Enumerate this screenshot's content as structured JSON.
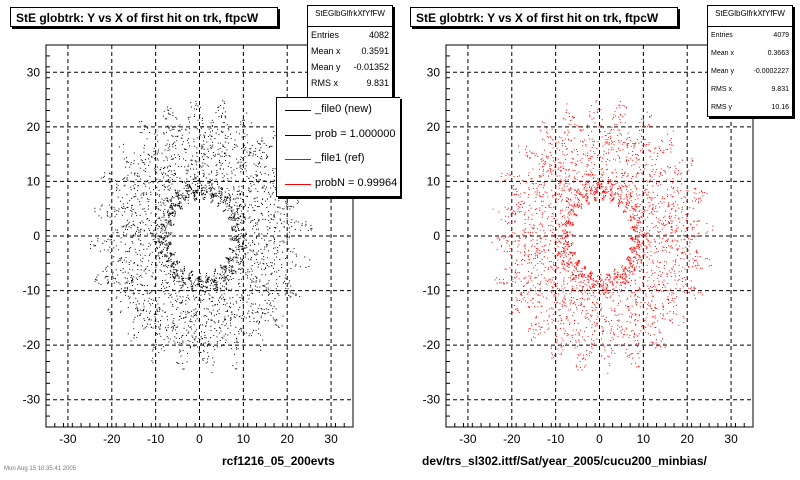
{
  "chart_data": [
    {
      "type": "scatter",
      "title": "StE globtrk: Y vs X of first hit on trk, ftpcW",
      "xlim": [
        -35,
        35
      ],
      "ylim": [
        -35,
        35
      ],
      "xticks": [
        -30,
        -20,
        -10,
        0,
        10,
        20,
        30
      ],
      "yticks": [
        -30,
        -20,
        -10,
        0,
        10,
        20,
        30
      ],
      "grid": true,
      "marker_color": "#000000",
      "distribution": {
        "shape": "ring",
        "inner_radius": 7.5,
        "dense_ring_radius": 8.5,
        "outer_radius": 22
      },
      "stats": {
        "name": "StEGlbGlfrkXfYfFW",
        "rows": [
          {
            "label": "Entries",
            "value": "4082"
          },
          {
            "label": "Mean x",
            "value": "0.3591"
          },
          {
            "label": "Mean y",
            "value": "-0.01352"
          },
          {
            "label": "RMS x",
            "value": "9.831"
          }
        ]
      },
      "legend": {
        "placement": "top-right",
        "entries": [
          {
            "label": "_file0 (new)",
            "color": "#000000"
          },
          {
            "label": "prob = 1.000000",
            "color": "#000000"
          },
          {
            "label": "_file1 (ref)",
            "color": "#ff0000"
          },
          {
            "label": "probN = 0.99964",
            "color": "#ff0000"
          }
        ]
      },
      "footer": "rcf1216_05_200evts"
    },
    {
      "type": "scatter",
      "title": "StE globtrk: Y vs X of first hit on trk, ftpcW",
      "xlim": [
        -35,
        35
      ],
      "ylim": [
        -35,
        35
      ],
      "xticks": [
        -30,
        -20,
        -10,
        0,
        10,
        20,
        30
      ],
      "yticks": [
        -30,
        -20,
        -10,
        0,
        10,
        20,
        30
      ],
      "grid": true,
      "marker_color": "#ff0000",
      "distribution": {
        "shape": "ring",
        "inner_radius": 7.5,
        "dense_ring_radius": 8.5,
        "outer_radius": 22
      },
      "stats": {
        "name": "StEGlbGlfrkXfYfFW",
        "rows": [
          {
            "label": "Entries",
            "value": "4079"
          },
          {
            "label": "Mean x",
            "value": "0.3663"
          },
          {
            "label": "Mean y",
            "value": "-0.0002227"
          },
          {
            "label": "RMS x",
            "value": "9.831"
          },
          {
            "label": "RMS y",
            "value": "10.16"
          }
        ]
      },
      "footer": "dev/trs_sl302.ittf/Sat/year_2005/cucu200_minbias/"
    }
  ],
  "timestamp": "Mon Aug 15 10:35:41 2005"
}
